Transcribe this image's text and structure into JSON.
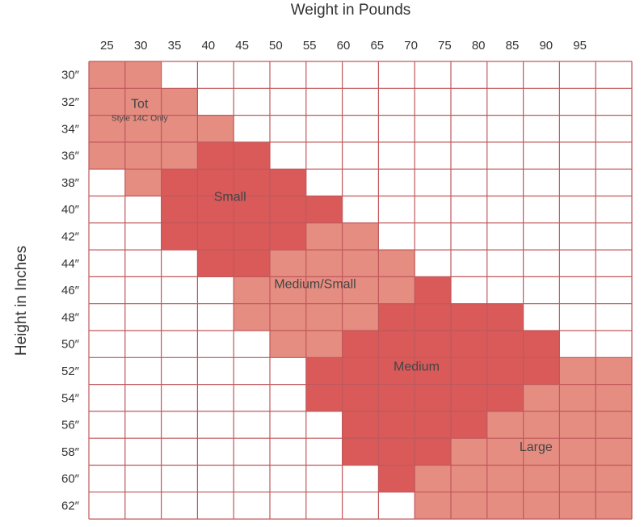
{
  "chart_data": {
    "type": "heatmap",
    "xlabel": "Weight in Pounds",
    "ylabel": "Height in Inches",
    "x_ticks": [
      "25",
      "30",
      "35",
      "40",
      "45",
      "50",
      "55",
      "60",
      "65",
      "70",
      "75",
      "80",
      "85",
      "90",
      "95"
    ],
    "y_ticks": [
      "30″",
      "32″",
      "34″",
      "36″",
      "38″",
      "40″",
      "42″",
      "44″",
      "46″",
      "48″",
      "50″",
      "52″",
      "54″",
      "56″",
      "58″",
      "60″",
      "62″"
    ],
    "grid": true,
    "zones": [
      {
        "name": "Tot",
        "note": "Style 14C Only",
        "color": "#e58d81"
      },
      {
        "name": "Small",
        "note": "",
        "color": "#d95a59"
      },
      {
        "name": "Medium/Small",
        "note": "",
        "color": "#e58d81"
      },
      {
        "name": "Medium",
        "note": "",
        "color": "#d95a59"
      },
      {
        "name": "Large",
        "note": "",
        "color": "#e58d81"
      }
    ],
    "rows": [
      [
        0,
        0,
        -1,
        -1,
        -1,
        -1,
        -1,
        -1,
        -1,
        -1,
        -1,
        -1,
        -1,
        -1,
        -1
      ],
      [
        0,
        0,
        0,
        -1,
        -1,
        -1,
        -1,
        -1,
        -1,
        -1,
        -1,
        -1,
        -1,
        -1,
        -1
      ],
      [
        0,
        0,
        0,
        0,
        -1,
        -1,
        -1,
        -1,
        -1,
        -1,
        -1,
        -1,
        -1,
        -1,
        -1
      ],
      [
        0,
        0,
        0,
        1,
        1,
        -1,
        -1,
        -1,
        -1,
        -1,
        -1,
        -1,
        -1,
        -1,
        -1
      ],
      [
        -1,
        0,
        1,
        1,
        1,
        1,
        -1,
        -1,
        -1,
        -1,
        -1,
        -1,
        -1,
        -1,
        -1
      ],
      [
        -1,
        -1,
        1,
        1,
        1,
        1,
        1,
        -1,
        -1,
        -1,
        -1,
        -1,
        -1,
        -1,
        -1
      ],
      [
        -1,
        -1,
        1,
        1,
        1,
        1,
        2,
        2,
        -1,
        -1,
        -1,
        -1,
        -1,
        -1,
        -1
      ],
      [
        -1,
        -1,
        -1,
        1,
        1,
        2,
        2,
        2,
        2,
        -1,
        -1,
        -1,
        -1,
        -1,
        -1
      ],
      [
        -1,
        -1,
        -1,
        -1,
        2,
        2,
        2,
        2,
        2,
        3,
        -1,
        -1,
        -1,
        -1,
        -1
      ],
      [
        -1,
        -1,
        -1,
        -1,
        2,
        2,
        2,
        2,
        3,
        3,
        3,
        3,
        -1,
        -1,
        -1
      ],
      [
        -1,
        -1,
        -1,
        -1,
        -1,
        2,
        2,
        3,
        3,
        3,
        3,
        3,
        3,
        -1,
        -1
      ],
      [
        -1,
        -1,
        -1,
        -1,
        -1,
        -1,
        3,
        3,
        3,
        3,
        3,
        3,
        3,
        4,
        4
      ],
      [
        -1,
        -1,
        -1,
        -1,
        -1,
        -1,
        3,
        3,
        3,
        3,
        3,
        3,
        4,
        4,
        4
      ],
      [
        -1,
        -1,
        -1,
        -1,
        -1,
        -1,
        -1,
        3,
        3,
        3,
        3,
        4,
        4,
        4,
        4
      ],
      [
        -1,
        -1,
        -1,
        -1,
        -1,
        -1,
        -1,
        3,
        3,
        3,
        4,
        4,
        4,
        4,
        4
      ],
      [
        -1,
        -1,
        -1,
        -1,
        -1,
        -1,
        -1,
        -1,
        3,
        4,
        4,
        4,
        4,
        4,
        4
      ],
      [
        -1,
        -1,
        -1,
        -1,
        -1,
        -1,
        -1,
        -1,
        -1,
        4,
        4,
        4,
        4,
        4,
        4
      ]
    ],
    "label_cells": [
      {
        "zone": 0,
        "row": 1.55,
        "col": 1.4
      },
      {
        "zone": 1,
        "row": 5.0,
        "col": 3.9
      },
      {
        "zone": 2,
        "row": 8.25,
        "col": 6.25
      },
      {
        "zone": 3,
        "row": 11.3,
        "col": 9.05
      },
      {
        "zone": 4,
        "row": 14.3,
        "col": 12.35
      }
    ],
    "colors": {
      "grid": "#c0585c",
      "empty": "#ffffff"
    }
  }
}
